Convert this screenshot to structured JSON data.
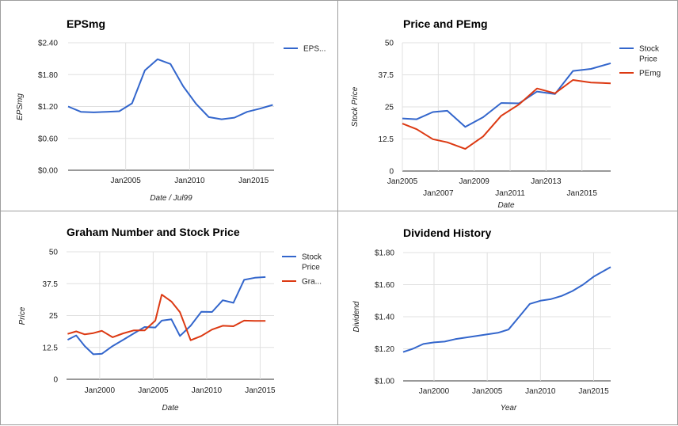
{
  "chart_data": [
    {
      "type": "line",
      "title": "EPSmg",
      "xlabel": "Date / Jul99",
      "ylabel": "EPSmg",
      "ylim": [
        0,
        2.4
      ],
      "xlim": [
        2000.5,
        2016.6
      ],
      "yticks": [
        0,
        0.6,
        1.2,
        1.8,
        2.4
      ],
      "yticklabels": [
        "$0.00",
        "$0.60",
        "$1.20",
        "$1.80",
        "$2.40"
      ],
      "xticks": [
        2005,
        2010,
        2015
      ],
      "xticklabels": [
        "Jan2005",
        "Jan2010",
        "Jan2015"
      ],
      "grid": true,
      "legend": "right",
      "series": [
        {
          "name": "EPS...",
          "color": "#3366cc",
          "x": [
            2000.5,
            2001.5,
            2002.5,
            2003.5,
            2004.5,
            2005.5,
            2006.5,
            2007.5,
            2008.5,
            2009.5,
            2010.5,
            2011.5,
            2012.5,
            2013.5,
            2014.5,
            2015.5,
            2016.5
          ],
          "values": [
            1.2,
            1.1,
            1.09,
            1.1,
            1.11,
            1.26,
            1.88,
            2.09,
            2.0,
            1.58,
            1.25,
            1.0,
            0.96,
            0.99,
            1.1,
            1.16,
            1.23
          ]
        }
      ]
    },
    {
      "type": "line",
      "title": "Price and PEmg",
      "xlabel": "Date",
      "ylabel": "Stock Price",
      "ylim": [
        0,
        50
      ],
      "xlim": [
        2005,
        2016.6
      ],
      "yticks": [
        0,
        12.5,
        25,
        37.5,
        50
      ],
      "yticklabels": [
        "0",
        "12.5",
        "25",
        "37.5",
        "50"
      ],
      "xticks": [
        2005,
        2007,
        2009,
        2011,
        2013,
        2015
      ],
      "xticklabels": [
        "Jan2005",
        "Jan2007",
        "Jan2009",
        "Jan2011",
        "Jan2013",
        "Jan2015"
      ],
      "grid": true,
      "legend": "right",
      "series": [
        {
          "name": "Stock Price",
          "color": "#3366cc",
          "x": [
            2005,
            2005.8,
            2006.7,
            2007.5,
            2008.5,
            2009.5,
            2010.5,
            2011.5,
            2012.5,
            2013.5,
            2014.5,
            2015.5,
            2016.6
          ],
          "values": [
            20.5,
            20.2,
            23.0,
            23.5,
            17.2,
            21.0,
            26.5,
            26.4,
            31.0,
            30.0,
            39.0,
            39.8,
            42.0
          ]
        },
        {
          "name": "PEmg",
          "color": "#dc3912",
          "x": [
            2005,
            2005.8,
            2006.7,
            2007.5,
            2008.5,
            2009.5,
            2010.5,
            2011.5,
            2012.5,
            2013.5,
            2014.5,
            2015.5,
            2016.6
          ],
          "values": [
            18.5,
            16.3,
            12.4,
            11.2,
            8.6,
            13.5,
            21.5,
            26.0,
            32.2,
            30.3,
            35.5,
            34.5,
            34.2
          ]
        }
      ]
    },
    {
      "type": "line",
      "title": "Graham Number and Stock Price",
      "xlabel": "Date",
      "ylabel": "Price",
      "ylim": [
        0,
        50
      ],
      "xlim": [
        1996.9,
        2016.3
      ],
      "yticks": [
        0,
        12.5,
        25,
        37.5,
        50
      ],
      "yticklabels": [
        "0",
        "12.5",
        "25",
        "37.5",
        "50"
      ],
      "xticks": [
        2000,
        2005,
        2010,
        2015
      ],
      "xticklabels": [
        "Jan2000",
        "Jan2005",
        "Jan2010",
        "Jan2015"
      ],
      "grid": true,
      "legend": "right",
      "series": [
        {
          "name": "Stock Price",
          "color": "#3366cc",
          "x": [
            1997,
            1997.8,
            1998.6,
            1999.4,
            2000.2,
            2001.2,
            2002.2,
            2003.2,
            2004.2,
            2005.2,
            2005.8,
            2006.7,
            2007.5,
            2008.5,
            2009.5,
            2010.5,
            2011.5,
            2012.5,
            2013.5,
            2014.5,
            2015.5
          ],
          "values": [
            15.5,
            17.2,
            13.0,
            9.8,
            10.0,
            13.0,
            15.5,
            18.0,
            20.5,
            20.3,
            23.0,
            23.5,
            17.0,
            21.0,
            26.5,
            26.4,
            31.0,
            30.0,
            39.0,
            39.8,
            40.1
          ]
        },
        {
          "name": "Gra...",
          "color": "#dc3912",
          "x": [
            1997,
            1997.8,
            1998.6,
            1999.4,
            2000.2,
            2001.2,
            2002.2,
            2003.2,
            2004.2,
            2005.2,
            2005.8,
            2006.7,
            2007.5,
            2008.5,
            2009.5,
            2010.5,
            2011.5,
            2012.5,
            2013.5,
            2014.5,
            2015.5
          ],
          "values": [
            17.8,
            18.8,
            17.6,
            18.1,
            19.0,
            16.5,
            18.0,
            19.2,
            19.2,
            23.0,
            33.2,
            30.5,
            26.3,
            15.3,
            17.0,
            19.5,
            21.0,
            20.8,
            23.0,
            22.9,
            22.9
          ]
        }
      ]
    },
    {
      "type": "line",
      "title": "Dividend History",
      "xlabel": "Year",
      "ylabel": "Dividend",
      "ylim": [
        1.0,
        1.8
      ],
      "xlim": [
        1997.1,
        2016.6
      ],
      "yticks": [
        1.0,
        1.2,
        1.4,
        1.6,
        1.8
      ],
      "yticklabels": [
        "$1.00",
        "$1.20",
        "$1.40",
        "$1.60",
        "$1.80"
      ],
      "xticks": [
        2000,
        2005,
        2010,
        2015
      ],
      "xticklabels": [
        "Jan2000",
        "Jan2005",
        "Jan2010",
        "Jan2015"
      ],
      "grid": true,
      "legend": "none",
      "series": [
        {
          "name": "",
          "color": "#3366cc",
          "x": [
            1997.1,
            1998,
            1999,
            2000,
            2001,
            2002,
            2003,
            2004,
            2005,
            2006,
            2007,
            2008,
            2009,
            2010,
            2011,
            2012,
            2013,
            2014,
            2015,
            2016.6
          ],
          "values": [
            1.18,
            1.2,
            1.23,
            1.24,
            1.245,
            1.26,
            1.27,
            1.28,
            1.29,
            1.3,
            1.32,
            1.4,
            1.48,
            1.5,
            1.51,
            1.53,
            1.56,
            1.6,
            1.65,
            1.71
          ]
        }
      ]
    }
  ]
}
